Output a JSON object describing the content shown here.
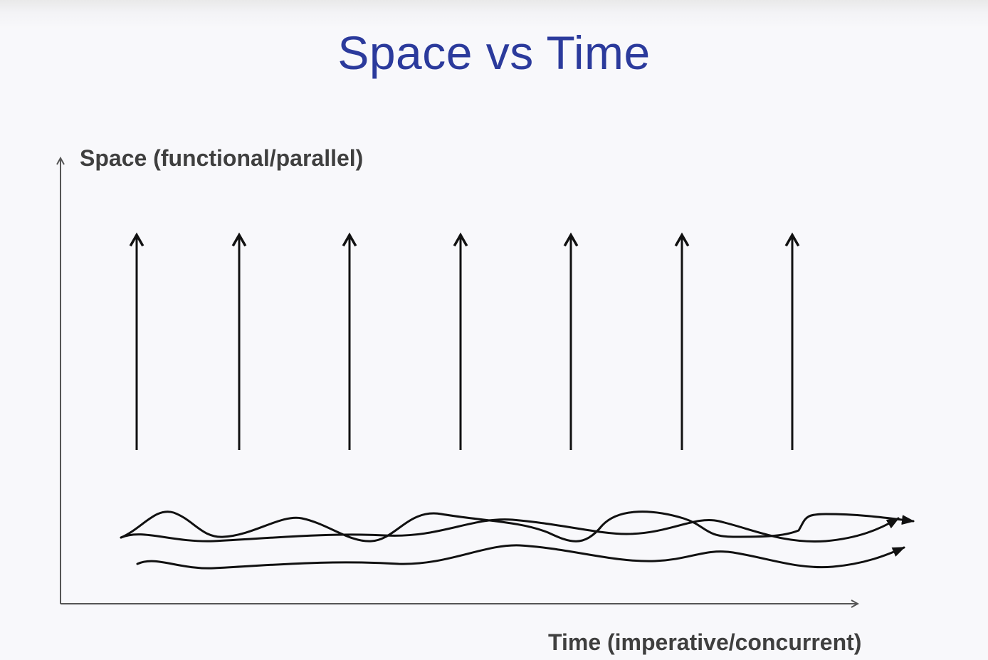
{
  "slide": {
    "title": "Space vs Time",
    "y_axis_label": "Space (functional/parallel)",
    "x_axis_label": "Time (imperative/concurrent)"
  },
  "diagram": {
    "vertical_arrow_count": 7,
    "wavy_line_count": 3,
    "colors": {
      "title": "#2b3a9c",
      "axis_label": "#3f3f3f",
      "axis_line": "#555555",
      "arrows": "#111111"
    }
  }
}
